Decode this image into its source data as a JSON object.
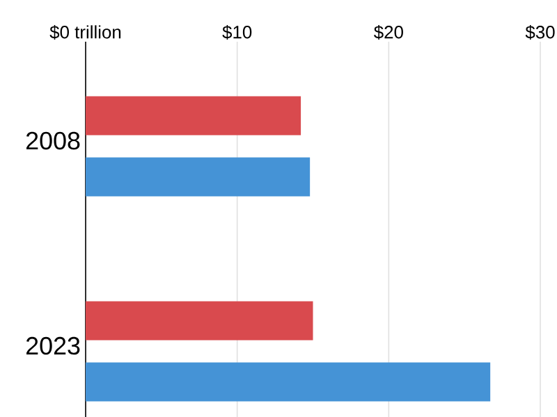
{
  "chart_data": {
    "type": "bar",
    "orientation": "horizontal",
    "categories": [
      "2008",
      "2023"
    ],
    "series": [
      {
        "color": "#d94a4e",
        "values": [
          14.2,
          15.0
        ]
      },
      {
        "color": "#4593d6",
        "values": [
          14.8,
          26.7
        ]
      }
    ],
    "xlim": [
      0,
      30
    ],
    "xticks": [
      {
        "value": 0,
        "label": "$0 trillion"
      },
      {
        "value": 10,
        "label": "$10"
      },
      {
        "value": 20,
        "label": "$20"
      },
      {
        "value": 30,
        "label": "$30"
      }
    ],
    "grid": "x"
  }
}
